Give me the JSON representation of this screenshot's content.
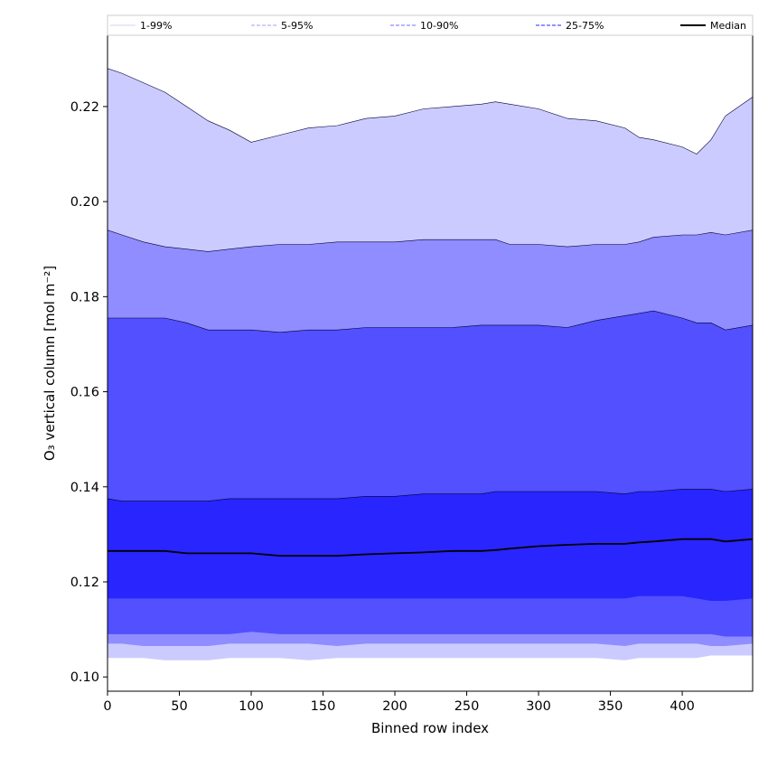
{
  "chart_data": {
    "type": "area",
    "xlabel": "Binned row index",
    "ylabel": "O₃ vertical column [mol m⁻²]",
    "xlim": [
      0,
      449
    ],
    "ylim": [
      0.097,
      0.235
    ],
    "x_ticks": [
      0,
      50,
      100,
      150,
      200,
      250,
      300,
      350,
      400
    ],
    "y_ticks": [
      0.1,
      0.12,
      0.14,
      0.16,
      0.18,
      0.2,
      0.22
    ],
    "y_tick_labels": [
      "0.10",
      "0.12",
      "0.14",
      "0.16",
      "0.18",
      "0.20",
      "0.22"
    ],
    "grid": false,
    "legend_position": "top",
    "legend": [
      {
        "label": "1-99%",
        "color": "#dcdcf5",
        "style": "solid"
      },
      {
        "label": "5-95%",
        "color": "#b4b4f0",
        "style": "dashed"
      },
      {
        "label": "10-90%",
        "color": "#8c8cff",
        "style": "dashed"
      },
      {
        "label": "25-75%",
        "color": "#5050ff",
        "style": "dashed"
      },
      {
        "label": "Median",
        "color": "#000000",
        "style": "solid"
      }
    ],
    "x": [
      0,
      10,
      25,
      40,
      55,
      70,
      85,
      100,
      120,
      140,
      160,
      180,
      200,
      220,
      240,
      260,
      270,
      280,
      300,
      320,
      340,
      360,
      370,
      380,
      400,
      410,
      420,
      430,
      449
    ],
    "bands": [
      {
        "name": "1-99%",
        "color": "#cccbff",
        "upper": [
          0.228,
          0.227,
          0.225,
          0.223,
          0.22,
          0.217,
          0.215,
          0.2125,
          0.214,
          0.2155,
          0.216,
          0.2175,
          0.218,
          0.2195,
          0.22,
          0.2205,
          0.221,
          0.2205,
          0.2195,
          0.2175,
          0.217,
          0.2155,
          0.2135,
          0.213,
          0.2115,
          0.21,
          0.213,
          0.218,
          0.222
        ],
        "lower": [
          0.104,
          0.104,
          0.104,
          0.1035,
          0.1035,
          0.1035,
          0.104,
          0.104,
          0.104,
          0.1035,
          0.104,
          0.104,
          0.104,
          0.104,
          0.104,
          0.104,
          0.104,
          0.104,
          0.104,
          0.104,
          0.104,
          0.1035,
          0.104,
          0.104,
          0.104,
          0.104,
          0.1045,
          0.1045,
          0.1045
        ]
      },
      {
        "name": "5-95%",
        "color": "#8f8dff",
        "upper": [
          0.194,
          0.193,
          0.1915,
          0.1905,
          0.19,
          0.1895,
          0.19,
          0.1905,
          0.191,
          0.191,
          0.1915,
          0.1915,
          0.1915,
          0.192,
          0.192,
          0.192,
          0.192,
          0.191,
          0.191,
          0.1905,
          0.191,
          0.191,
          0.1915,
          0.1925,
          0.193,
          0.193,
          0.1935,
          0.193,
          0.194
        ],
        "lower": [
          0.107,
          0.107,
          0.1065,
          0.1065,
          0.1065,
          0.1065,
          0.107,
          0.107,
          0.107,
          0.107,
          0.1065,
          0.107,
          0.107,
          0.107,
          0.107,
          0.107,
          0.107,
          0.107,
          0.107,
          0.107,
          0.107,
          0.1065,
          0.107,
          0.107,
          0.107,
          0.107,
          0.1065,
          0.1065,
          0.107
        ]
      },
      {
        "name": "10-90%",
        "color": "#5250ff",
        "upper": [
          0.1755,
          0.1755,
          0.1755,
          0.1755,
          0.1745,
          0.173,
          0.173,
          0.173,
          0.1725,
          0.173,
          0.173,
          0.1735,
          0.1735,
          0.1735,
          0.1735,
          0.174,
          0.174,
          0.174,
          0.174,
          0.1735,
          0.175,
          0.176,
          0.1765,
          0.177,
          0.1755,
          0.1745,
          0.1745,
          0.173,
          0.174
        ],
        "lower": [
          0.109,
          0.109,
          0.109,
          0.109,
          0.109,
          0.109,
          0.109,
          0.1095,
          0.109,
          0.109,
          0.109,
          0.109,
          0.109,
          0.109,
          0.109,
          0.109,
          0.109,
          0.109,
          0.109,
          0.109,
          0.109,
          0.109,
          0.109,
          0.109,
          0.109,
          0.109,
          0.109,
          0.1085,
          0.1085
        ]
      },
      {
        "name": "25-75%",
        "color": "#2825ff",
        "upper": [
          0.1375,
          0.137,
          0.137,
          0.137,
          0.137,
          0.137,
          0.1375,
          0.1375,
          0.1375,
          0.1375,
          0.1375,
          0.138,
          0.138,
          0.1385,
          0.1385,
          0.1385,
          0.139,
          0.139,
          0.139,
          0.139,
          0.139,
          0.1385,
          0.139,
          0.139,
          0.1395,
          0.1395,
          0.1395,
          0.139,
          0.1395
        ],
        "lower": [
          0.1165,
          0.1165,
          0.1165,
          0.1165,
          0.1165,
          0.1165,
          0.1165,
          0.1165,
          0.1165,
          0.1165,
          0.1165,
          0.1165,
          0.1165,
          0.1165,
          0.1165,
          0.1165,
          0.1165,
          0.1165,
          0.1165,
          0.1165,
          0.1165,
          0.1165,
          0.117,
          0.117,
          0.117,
          0.1165,
          0.116,
          0.116,
          0.1165
        ]
      }
    ],
    "series": [
      {
        "name": "Median",
        "color": "#000000",
        "values": [
          0.1265,
          0.1265,
          0.1265,
          0.1265,
          0.126,
          0.126,
          0.126,
          0.126,
          0.1255,
          0.1255,
          0.1255,
          0.1258,
          0.126,
          0.1262,
          0.1265,
          0.1265,
          0.1267,
          0.127,
          0.1275,
          0.1278,
          0.128,
          0.128,
          0.1283,
          0.1285,
          0.129,
          0.129,
          0.129,
          0.1285,
          0.129
        ]
      }
    ]
  }
}
